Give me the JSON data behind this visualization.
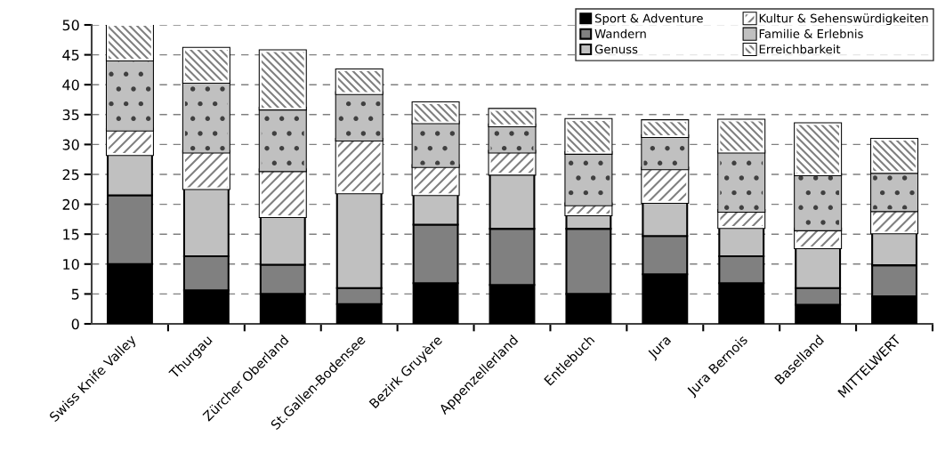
{
  "chart_data": {
    "type": "bar",
    "stacked": true,
    "categories": [
      "Swiss Knife Valley",
      "Thurgau",
      "Zürcher Oberland",
      "St.Gallen-Bodensee",
      "Bezirk Gruyère",
      "Appenzellerland",
      "Entlebuch",
      "Jura",
      "Jura Bernois",
      "Baselland",
      "MITTELWERT"
    ],
    "series": [
      {
        "name": "Sport & Adventure",
        "color": "#000000",
        "values": [
          10.0,
          5.6,
          5.0,
          3.3,
          6.8,
          6.5,
          5.0,
          8.3,
          6.8,
          3.2,
          4.6
        ]
      },
      {
        "name": "Wandern",
        "color": "#808080",
        "values": [
          11.5,
          5.7,
          4.9,
          2.7,
          9.8,
          9.4,
          10.9,
          6.4,
          4.5,
          2.8,
          5.2
        ]
      },
      {
        "name": "Genuss",
        "color": "#c0c0c0",
        "values": [
          6.9,
          11.4,
          8.1,
          16.0,
          5.1,
          9.2,
          2.4,
          5.7,
          4.9,
          6.8,
          5.5
        ]
      },
      {
        "name": "Kultur & Sehenswürdigkeiten",
        "color": "#ffffff",
        "values": [
          4.1,
          6.1,
          7.7,
          8.8,
          4.7,
          3.7,
          1.7,
          5.6,
          2.7,
          3.0,
          3.7
        ]
      },
      {
        "name": "Familie & Erlebnis",
        "color": "#c0c0c0",
        "values": [
          11.7,
          11.7,
          10.3,
          7.8,
          7.3,
          4.4,
          8.6,
          5.4,
          9.9,
          9.2,
          6.4
        ]
      },
      {
        "name": "Erreichbarkeit",
        "color": "#ffffff",
        "values": [
          5.8,
          5.5,
          9.6,
          3.8,
          3.2,
          2.6,
          5.5,
          2.5,
          5.2,
          8.4,
          5.4
        ]
      }
    ],
    "ylim": [
      0,
      50
    ],
    "yticks": [
      0,
      5,
      10,
      15,
      20,
      25,
      30,
      35,
      40,
      45,
      50
    ],
    "grid": "y",
    "legend": "top right"
  }
}
